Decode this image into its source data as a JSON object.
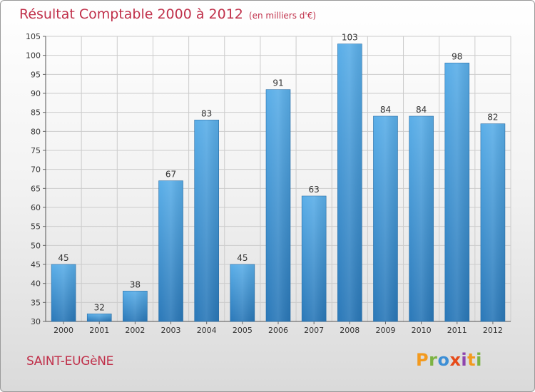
{
  "header": {
    "title": "Résultat Comptable 2000 à 2012",
    "subtitle": "(en milliers d'€)"
  },
  "footer": {
    "commune": "SAINT-EUGèNE",
    "logo_text": "Proxiti"
  },
  "colors": {
    "title": "#c0304a",
    "bar_top": "#5aaee8",
    "bar_bottom": "#2a78b8",
    "grid": "#cccccc",
    "logo": [
      "#f39a1e",
      "#7cb342",
      "#3d8fd6",
      "#e64a19",
      "#8e44ad",
      "#f39a1e",
      "#7cb342"
    ]
  },
  "chart_data": {
    "type": "bar",
    "title": "Résultat Comptable 2000 à 2012",
    "subtitle": "(en milliers d'€)",
    "xlabel": "",
    "ylabel": "",
    "categories": [
      "2000",
      "2001",
      "2002",
      "2003",
      "2004",
      "2005",
      "2006",
      "2007",
      "2008",
      "2009",
      "2010",
      "2011",
      "2012"
    ],
    "values": [
      45,
      32,
      38,
      67,
      83,
      45,
      91,
      63,
      103,
      84,
      84,
      98,
      82
    ],
    "ylim": [
      30,
      105
    ],
    "yticks": [
      30,
      35,
      40,
      45,
      50,
      55,
      60,
      65,
      70,
      75,
      80,
      85,
      90,
      95,
      100,
      105
    ],
    "grid": true,
    "data_labels": true
  }
}
